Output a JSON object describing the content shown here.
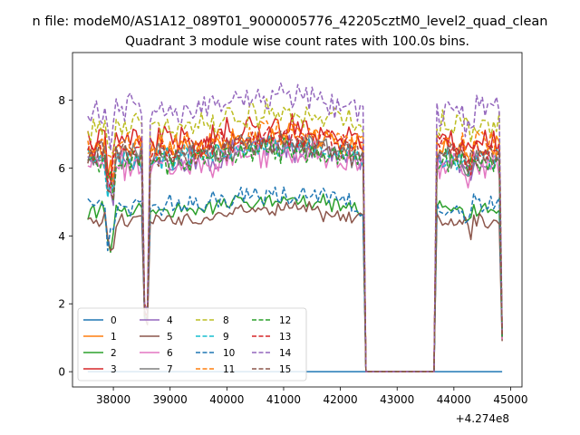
{
  "figure": {
    "suptitle": "n file: modeM0/AS1A12_089T01_9000005776_42205cztM0_level2_quad_clean",
    "title": "Quadrant 3 module wise count rates with 100.0s bins."
  },
  "chart_data": {
    "type": "line",
    "title": "Quadrant 3 module wise count rates with 100.0s bins.",
    "xlabel": "",
    "ylabel": "",
    "x_offset_label": "+4.274e8",
    "x_ticks": [
      38000,
      39000,
      40000,
      41000,
      42000,
      43000,
      44000,
      45000
    ],
    "y_ticks": [
      0,
      2,
      4,
      6,
      8
    ],
    "xlim": [
      37280,
      45200
    ],
    "ylim": [
      -0.45,
      9.4
    ],
    "grid": false,
    "legend": {
      "placement": "lower-left",
      "columns": 4
    },
    "segments": [
      {
        "start": 37550,
        "end": 38550,
        "dips": [
          [
            37950,
            0.35
          ],
          [
            38150,
            0.6
          ]
        ]
      },
      {
        "start": 38550,
        "end": 38600,
        "minimum": true
      },
      {
        "start": 38600,
        "end": 42450,
        "dips": []
      },
      {
        "start": 42550,
        "end": 43650,
        "zero": true
      },
      {
        "start": 43750,
        "end": 44850,
        "dips": [
          [
            44250,
            0.5
          ],
          [
            44650,
            0.5
          ]
        ]
      }
    ],
    "series": [
      {
        "name": "0",
        "color": "#1f77b4",
        "style": "solid",
        "level": 0,
        "dip_level": 0,
        "amp": 0,
        "seed": 11
      },
      {
        "name": "1",
        "color": "#ff7f0e",
        "style": "solid",
        "level": 6.6,
        "dip_level": 1.6,
        "amp": 0.3,
        "seed": 21
      },
      {
        "name": "2",
        "color": "#2ca02c",
        "style": "solid",
        "level": 4.75,
        "dip_level": 1.7,
        "amp": 0.2,
        "seed": 31
      },
      {
        "name": "3",
        "color": "#d62728",
        "style": "solid",
        "level": 6.85,
        "dip_level": 1.9,
        "amp": 0.35,
        "seed": 41
      },
      {
        "name": "4",
        "color": "#9467bd",
        "style": "solid",
        "level": 6.2,
        "dip_level": 1.7,
        "amp": 0.3,
        "seed": 51
      },
      {
        "name": "5",
        "color": "#8c564b",
        "style": "solid",
        "level": 4.45,
        "dip_level": 1.5,
        "amp": 0.2,
        "seed": 61
      },
      {
        "name": "6",
        "color": "#e377c2",
        "style": "solid",
        "level": 6.1,
        "dip_level": 1.6,
        "amp": 0.35,
        "seed": 71
      },
      {
        "name": "7",
        "color": "#7f7f7f",
        "style": "solid",
        "level": 6.35,
        "dip_level": 1.7,
        "amp": 0.3,
        "seed": 81
      },
      {
        "name": "8",
        "color": "#bcbd22",
        "style": "dashed",
        "level": 7.3,
        "dip_level": 1.8,
        "amp": 0.35,
        "seed": 91
      },
      {
        "name": "9",
        "color": "#17becf",
        "style": "dashed",
        "level": 6.3,
        "dip_level": 1.7,
        "amp": 0.3,
        "seed": 101
      },
      {
        "name": "10",
        "color": "#1f77b4",
        "style": "dashed",
        "level": 4.9,
        "dip_level": 1.8,
        "amp": 0.25,
        "seed": 111
      },
      {
        "name": "11",
        "color": "#ff7f0e",
        "style": "dashed",
        "level": 6.7,
        "dip_level": 1.8,
        "amp": 0.3,
        "seed": 121
      },
      {
        "name": "12",
        "color": "#2ca02c",
        "style": "dashed",
        "level": 6.2,
        "dip_level": 1.7,
        "amp": 0.3,
        "seed": 131
      },
      {
        "name": "13",
        "color": "#d62728",
        "style": "dashed",
        "level": 6.6,
        "dip_level": 1.8,
        "amp": 0.3,
        "seed": 141
      },
      {
        "name": "14",
        "color": "#9467bd",
        "style": "dashed",
        "level": 7.7,
        "dip_level": 2.0,
        "amp": 0.35,
        "seed": 151
      },
      {
        "name": "15",
        "color": "#8c564b",
        "style": "dashed",
        "level": 6.4,
        "dip_level": 1.7,
        "amp": 0.3,
        "seed": 161
      }
    ]
  }
}
